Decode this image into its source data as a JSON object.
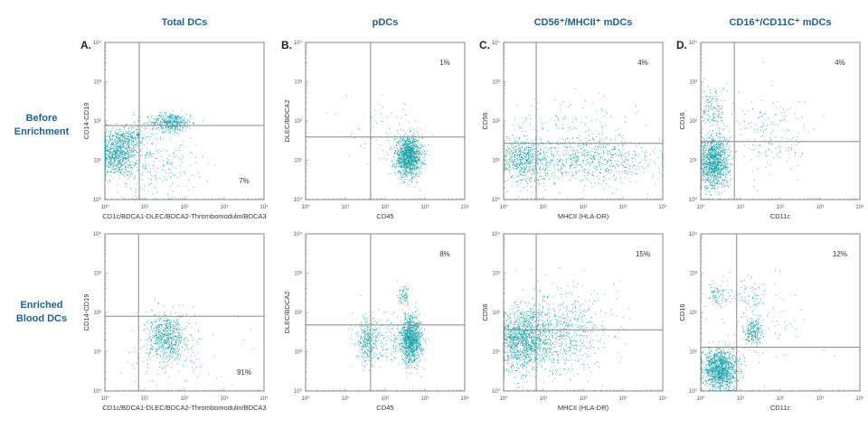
{
  "column_titles": [
    "Total DCs",
    "pDCs",
    "CD56⁺/MHCII⁺ mDCs",
    "CD16⁺/CD11C⁺ mDCs"
  ],
  "row_labels": [
    [
      "Before",
      "Enrichment"
    ],
    [
      "Enriched",
      "Blood DCs"
    ]
  ],
  "colors": {
    "title": "#1e6295",
    "points": "#19a3a8",
    "gate": "#888888",
    "frame": "#999999"
  },
  "chart_data": [
    {
      "type": "scatter",
      "row": 0,
      "col": 0,
      "letter": "A.",
      "xlabel": "CD1c/BDCA1-DLEC/BDCA2-Thrombomodulin/BDCA3",
      "ylabel": "CD14-CD19",
      "xlim": [
        1,
        10000
      ],
      "ylim": [
        1,
        10000
      ],
      "scale": "log",
      "tick_labels": [
        "10⁰",
        "10¹",
        "10²",
        "10³",
        "10⁴"
      ],
      "gate": {
        "x": 7.3,
        "y": 77
      },
      "percent": "7%",
      "percent_quadrant": "bottom-right",
      "populations": [
        {
          "x": 2,
          "y": 15,
          "sx": 0.25,
          "sy": 0.3,
          "n": 900
        },
        {
          "x": 45,
          "y": 90,
          "sx": 0.25,
          "sy": 0.12,
          "n": 450
        },
        {
          "x": 5,
          "y": 40,
          "sx": 0.2,
          "sy": 0.15,
          "n": 150
        },
        {
          "x": 20,
          "y": 8,
          "sx": 0.5,
          "sy": 0.5,
          "n": 250
        }
      ]
    },
    {
      "type": "scatter",
      "row": 0,
      "col": 1,
      "letter": "B.",
      "xlabel": "CD45",
      "ylabel": "DLEC/BDCA2",
      "xlim": [
        1,
        10000
      ],
      "ylim": [
        1,
        10000
      ],
      "scale": "log",
      "tick_labels": [
        "10⁰",
        "10¹",
        "10²",
        "10³",
        "10⁴"
      ],
      "gate": {
        "x": 43,
        "y": 39
      },
      "percent": "1%",
      "percent_quadrant": "top-right",
      "populations": [
        {
          "x": 380,
          "y": 12,
          "sx": 0.17,
          "sy": 0.25,
          "n": 1300
        },
        {
          "x": 100,
          "y": 50,
          "sx": 0.5,
          "sy": 0.4,
          "n": 60
        }
      ]
    },
    {
      "type": "scatter",
      "row": 0,
      "col": 2,
      "letter": "C.",
      "xlabel": "MHCII (HLA-DR)",
      "ylabel": "CD56",
      "xlim": [
        1,
        10000
      ],
      "ylim": [
        1,
        10000
      ],
      "scale": "log",
      "tick_labels": [
        "10⁰",
        "10¹",
        "10²",
        "10³",
        "10⁴"
      ],
      "gate": {
        "x": 6.6,
        "y": 27
      },
      "percent": "4%",
      "percent_quadrant": "top-right",
      "populations": [
        {
          "x": 3,
          "y": 10,
          "sx": 0.3,
          "sy": 0.3,
          "n": 600
        },
        {
          "x": 150,
          "y": 10,
          "sx": 0.9,
          "sy": 0.3,
          "n": 700
        },
        {
          "x": 40,
          "y": 60,
          "sx": 0.8,
          "sy": 0.4,
          "n": 150
        }
      ]
    },
    {
      "type": "scatter",
      "row": 0,
      "col": 3,
      "letter": "D.",
      "xlabel": "CD11c",
      "ylabel": "CD16",
      "xlim": [
        1,
        10000
      ],
      "ylim": [
        1,
        10000
      ],
      "scale": "log",
      "tick_labels": [
        "10⁰",
        "10¹",
        "10²",
        "10³",
        "10⁴"
      ],
      "gate": {
        "x": 7,
        "y": 30
      },
      "percent": "4%",
      "percent_quadrant": "top-right",
      "populations": [
        {
          "x": 2,
          "y": 9,
          "sx": 0.2,
          "sy": 0.35,
          "n": 1300
        },
        {
          "x": 2,
          "y": 200,
          "sx": 0.15,
          "sy": 0.3,
          "n": 150
        },
        {
          "x": 60,
          "y": 40,
          "sx": 0.5,
          "sy": 0.5,
          "n": 180
        }
      ]
    },
    {
      "type": "scatter",
      "row": 1,
      "col": 0,
      "letter": "",
      "xlabel": "CD1c/BDCA1-DLEC/BDCA2-Thrombomodulin/BDCA3",
      "ylabel": "CD14-CD19",
      "xlim": [
        1,
        10000
      ],
      "ylim": [
        1,
        10000
      ],
      "scale": "log",
      "tick_labels": [
        "10⁰",
        "10¹",
        "10²",
        "10³",
        "10⁴"
      ],
      "gate": {
        "x": 7,
        "y": 80
      },
      "percent": "91%",
      "percent_quadrant": "bottom-right",
      "populations": [
        {
          "x": 35,
          "y": 22,
          "sx": 0.25,
          "sy": 0.3,
          "n": 650
        },
        {
          "x": 60,
          "y": 10,
          "sx": 0.6,
          "sy": 0.5,
          "n": 100
        }
      ]
    },
    {
      "type": "scatter",
      "row": 1,
      "col": 1,
      "letter": "",
      "xlabel": "CD45",
      "ylabel": "DLEC/BDCA2",
      "xlim": [
        1,
        10000
      ],
      "ylim": [
        1,
        10000
      ],
      "scale": "log",
      "tick_labels": [
        "10⁰",
        "10¹",
        "10²",
        "10³",
        "10⁴"
      ],
      "gate": {
        "x": 43,
        "y": 48
      },
      "percent": "8%",
      "percent_quadrant": "top-right",
      "populations": [
        {
          "x": 450,
          "y": 20,
          "sx": 0.13,
          "sy": 0.3,
          "n": 1100
        },
        {
          "x": 35,
          "y": 18,
          "sx": 0.15,
          "sy": 0.3,
          "n": 300
        },
        {
          "x": 300,
          "y": 250,
          "sx": 0.08,
          "sy": 0.12,
          "n": 80
        },
        {
          "x": 150,
          "y": 15,
          "sx": 0.35,
          "sy": 0.3,
          "n": 200
        }
      ]
    },
    {
      "type": "scatter",
      "row": 1,
      "col": 2,
      "letter": "",
      "xlabel": "MHCII (HLA-DR)",
      "ylabel": "CD56",
      "xlim": [
        1,
        10000
      ],
      "ylim": [
        1,
        10000
      ],
      "scale": "log",
      "tick_labels": [
        "10⁰",
        "10¹",
        "10²",
        "10³",
        "10⁴"
      ],
      "gate": {
        "x": 6.6,
        "y": 36
      },
      "percent": "15%",
      "percent_quadrant": "top-right",
      "populations": [
        {
          "x": 3,
          "y": 20,
          "sx": 0.35,
          "sy": 0.4,
          "n": 1300
        },
        {
          "x": 30,
          "y": 30,
          "sx": 0.6,
          "sy": 0.55,
          "n": 700
        }
      ]
    },
    {
      "type": "scatter",
      "row": 1,
      "col": 3,
      "letter": "",
      "xlabel": "CD11c",
      "ylabel": "CD16",
      "xlim": [
        1,
        10000
      ],
      "ylim": [
        1,
        10000
      ],
      "scale": "log",
      "tick_labels": [
        "10⁰",
        "10¹",
        "10²",
        "10³",
        "10⁴"
      ],
      "gate": {
        "x": 8,
        "y": 13
      },
      "percent": "12%",
      "percent_quadrant": "top-right",
      "populations": [
        {
          "x": 3,
          "y": 3.5,
          "sx": 0.22,
          "sy": 0.25,
          "n": 1300
        },
        {
          "x": 20,
          "y": 30,
          "sx": 0.12,
          "sy": 0.2,
          "n": 220
        },
        {
          "x": 2.5,
          "y": 250,
          "sx": 0.15,
          "sy": 0.2,
          "n": 90
        },
        {
          "x": 15,
          "y": 250,
          "sx": 0.2,
          "sy": 0.2,
          "n": 60
        },
        {
          "x": 30,
          "y": 60,
          "sx": 0.6,
          "sy": 0.6,
          "n": 100
        }
      ]
    }
  ]
}
